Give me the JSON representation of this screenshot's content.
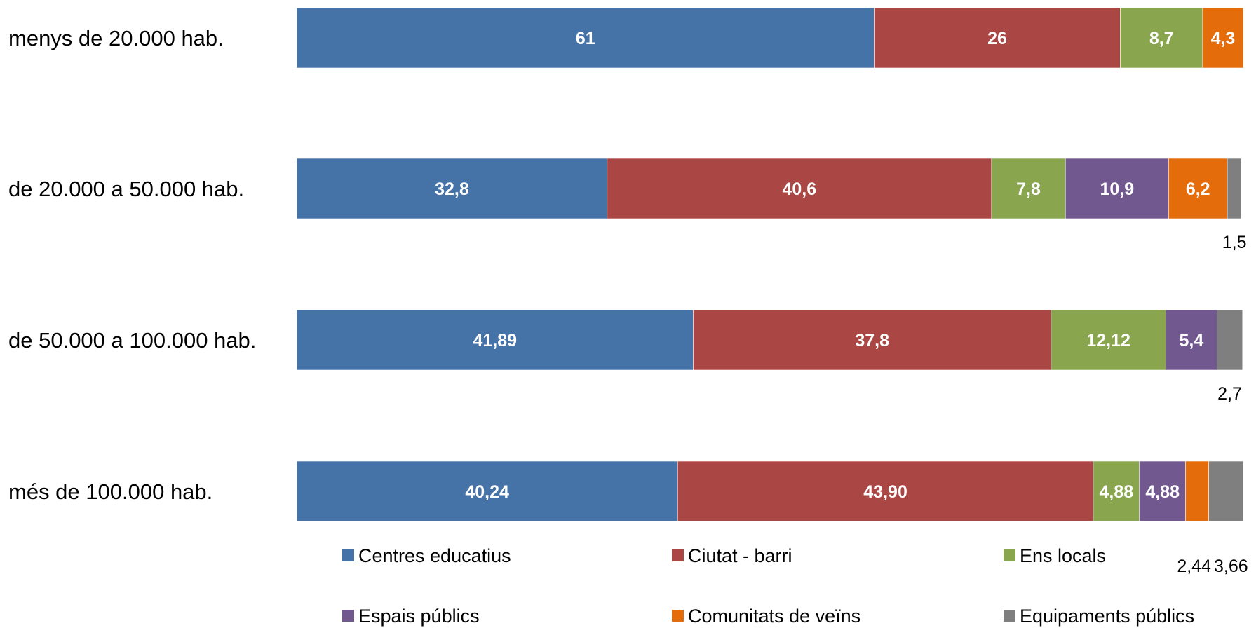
{
  "chart_data": {
    "type": "bar",
    "orientation": "horizontal",
    "stacked": true,
    "categories": [
      "menys de 20.000 hab.",
      "de 20.000 a 50.000 hab.",
      "de 50.000 a 100.000 hab.",
      "més de 100.000 hab."
    ],
    "series": [
      {
        "name": "Centres educatius",
        "color": "#4572A7",
        "values": [
          61,
          32.8,
          41.89,
          40.24
        ],
        "labels": [
          "61",
          "32,8",
          "41,89",
          "40,24"
        ]
      },
      {
        "name": "Ciutat - barri",
        "color": "#AA4643",
        "values": [
          26,
          40.6,
          37.8,
          43.9
        ],
        "labels": [
          "26",
          "40,6",
          "37,8",
          "43,90"
        ]
      },
      {
        "name": "Ens locals",
        "color": "#89A54E",
        "values": [
          8.7,
          7.8,
          12.12,
          4.88
        ],
        "labels": [
          "8,7",
          "7,8",
          "12,12",
          "4,88"
        ]
      },
      {
        "name": "Espais públics",
        "color": "#71588F",
        "values": [
          0,
          10.9,
          5.4,
          4.88
        ],
        "labels": [
          "",
          "10,9",
          "5,4",
          "4,88"
        ]
      },
      {
        "name": "Comunitats de veïns",
        "color": "#E46C0A",
        "values": [
          4.3,
          6.2,
          0,
          2.44
        ],
        "labels": [
          "4,3",
          "6,2",
          "",
          "2,44"
        ]
      },
      {
        "name": "Equipaments públics",
        "color": "#7F7F7F",
        "values": [
          0,
          1.5,
          2.7,
          3.66
        ],
        "labels": [
          "",
          "1,5",
          "2,7",
          "3,66"
        ]
      }
    ],
    "xlim": [
      0,
      100
    ],
    "grid": false,
    "legend_position": "bottom",
    "title": "",
    "xlabel": "",
    "ylabel": ""
  }
}
